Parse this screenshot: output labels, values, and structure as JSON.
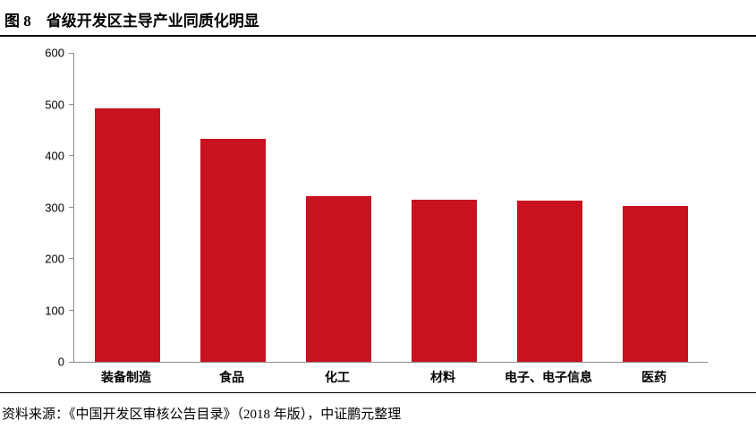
{
  "header": {
    "figure_label": "图 8",
    "title": "省级开发区主导产业同质化明显"
  },
  "footer": {
    "source": "资料来源：《中国开发区审核公告目录》（2018 年版），中证鹏元整理"
  },
  "colors": {
    "bar": "#C8121F",
    "axis": "#8C8C8C",
    "rule": "#000000",
    "text": "#000000"
  },
  "chart_data": {
    "type": "bar",
    "categories": [
      "装备制造",
      "食品",
      "化工",
      "材料",
      "电子、电子信息",
      "医药"
    ],
    "values": [
      492,
      433,
      321,
      315,
      313,
      302
    ],
    "title": "省级开发区主导产业同质化明显",
    "xlabel": "",
    "ylabel": "",
    "ylim": [
      0,
      600
    ],
    "ytick_step": 100,
    "ytick_labels": [
      "0",
      "100",
      "200",
      "300",
      "400",
      "500",
      "600"
    ],
    "grid": false,
    "legend": false,
    "bar_color": "#C8121F"
  }
}
